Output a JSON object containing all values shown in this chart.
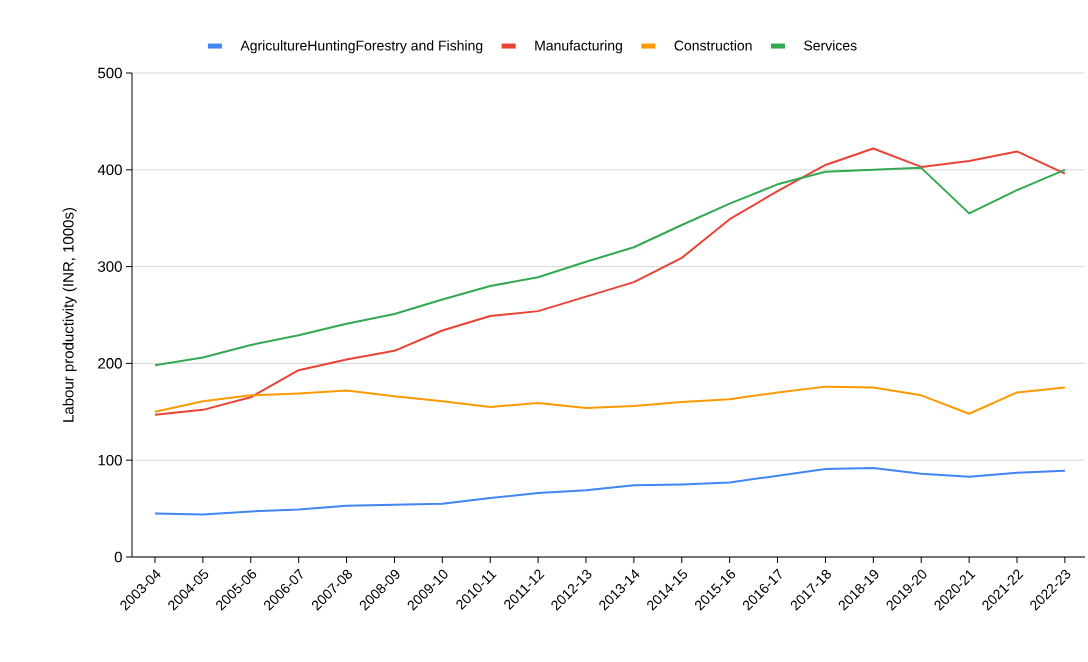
{
  "chart_data": {
    "type": "line",
    "ylabel": "Labour productivity (INR, 1000s)",
    "categories": [
      "2003-04",
      "2004-05",
      "2005-06",
      "2006-07",
      "2007-08",
      "2008-09",
      "2009-10",
      "2010-11",
      "2011-12",
      "2012-13",
      "2013-14",
      "2014-15",
      "2015-16",
      "2016-17",
      "2017-18",
      "2018-19",
      "2019-20",
      "2020-21",
      "2021-22",
      "2022-23"
    ],
    "series": [
      {
        "name": "AgricultureHuntingForestry and Fishing",
        "color": "#4285f4",
        "values": [
          45,
          44,
          47,
          49,
          53,
          54,
          55,
          61,
          66,
          69,
          74,
          75,
          77,
          84,
          91,
          92,
          86,
          83,
          87,
          89
        ]
      },
      {
        "name": "Manufacturing",
        "color": "#ea4335",
        "values": [
          147,
          152,
          165,
          193,
          204,
          213,
          234,
          249,
          254,
          269,
          284,
          309,
          349,
          378,
          405,
          422,
          403,
          409,
          419,
          396
        ]
      },
      {
        "name": "Construction",
        "color": "#ff9900",
        "values": [
          150,
          161,
          167,
          169,
          172,
          166,
          161,
          155,
          159,
          154,
          156,
          160,
          163,
          170,
          176,
          175,
          167,
          148,
          170,
          175
        ]
      },
      {
        "name": "Services",
        "color": "#34a853",
        "values": [
          198,
          206,
          219,
          229,
          241,
          251,
          266,
          280,
          289,
          305,
          320,
          343,
          365,
          385,
          398,
          400,
          402,
          355,
          379,
          400
        ]
      }
    ],
    "ylim": [
      0,
      500
    ],
    "yticks": [
      0,
      100,
      200,
      300,
      400,
      500
    ],
    "grid": "y",
    "legend": "top",
    "marker": "none",
    "line_style": "solid"
  }
}
